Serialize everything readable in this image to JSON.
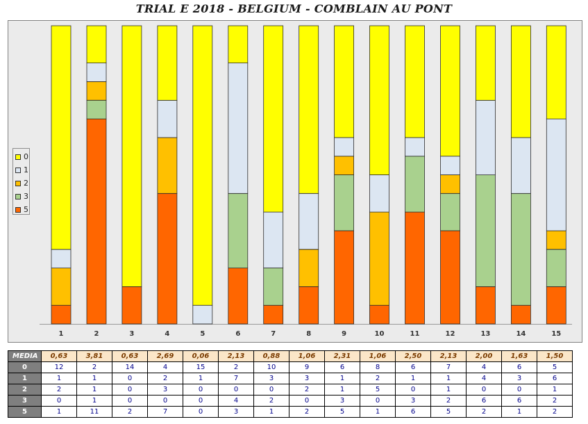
{
  "chart_data": {
    "type": "bar",
    "stacked": "percent",
    "title": "TRIAL E 2018 - BELGIUM - COMBLAIN AU PONT",
    "categories": [
      "1",
      "2",
      "3",
      "4",
      "5",
      "6",
      "7",
      "8",
      "9",
      "10",
      "11",
      "12",
      "13",
      "14",
      "15"
    ],
    "series": [
      {
        "name": "5",
        "color": "#ff6600",
        "values": [
          1,
          11,
          2,
          7,
          0,
          3,
          1,
          2,
          5,
          1,
          6,
          5,
          2,
          1,
          2
        ]
      },
      {
        "name": "3",
        "color": "#a9d18e",
        "values": [
          0,
          1,
          0,
          0,
          0,
          4,
          2,
          0,
          3,
          0,
          3,
          2,
          6,
          6,
          2
        ]
      },
      {
        "name": "2",
        "color": "#ffc000",
        "values": [
          2,
          1,
          0,
          3,
          0,
          0,
          0,
          2,
          1,
          5,
          0,
          1,
          0,
          0,
          1
        ]
      },
      {
        "name": "1",
        "color": "#dce6f2",
        "values": [
          1,
          1,
          0,
          2,
          1,
          7,
          3,
          3,
          1,
          2,
          1,
          1,
          4,
          3,
          6
        ]
      },
      {
        "name": "0",
        "color": "#ffff00",
        "values": [
          12,
          2,
          14,
          4,
          15,
          2,
          10,
          9,
          6,
          8,
          6,
          7,
          4,
          6,
          5
        ]
      }
    ],
    "legend_order": [
      "0",
      "1",
      "2",
      "3",
      "5"
    ],
    "legend_position": "left",
    "grid": false
  },
  "table": {
    "media_label": "MEDIA",
    "media": [
      "0,63",
      "3,81",
      "0,63",
      "2,69",
      "0,06",
      "2,13",
      "0,88",
      "1,06",
      "2,31",
      "1,06",
      "2,50",
      "2,13",
      "2,00",
      "1,63",
      "1,50"
    ],
    "rows": [
      {
        "label": "0",
        "values": [
          "12",
          "2",
          "14",
          "4",
          "15",
          "2",
          "10",
          "9",
          "6",
          "8",
          "6",
          "7",
          "4",
          "6",
          "5"
        ]
      },
      {
        "label": "1",
        "values": [
          "1",
          "1",
          "0",
          "2",
          "1",
          "7",
          "3",
          "3",
          "1",
          "2",
          "1",
          "1",
          "4",
          "3",
          "6"
        ]
      },
      {
        "label": "2",
        "values": [
          "2",
          "1",
          "0",
          "3",
          "0",
          "0",
          "0",
          "2",
          "1",
          "5",
          "0",
          "1",
          "0",
          "0",
          "1"
        ]
      },
      {
        "label": "3",
        "values": [
          "0",
          "1",
          "0",
          "0",
          "0",
          "4",
          "2",
          "0",
          "3",
          "0",
          "3",
          "2",
          "6",
          "6",
          "2"
        ]
      },
      {
        "label": "5",
        "values": [
          "1",
          "11",
          "2",
          "7",
          "0",
          "3",
          "1",
          "2",
          "5",
          "1",
          "6",
          "5",
          "2",
          "1",
          "2"
        ]
      }
    ]
  }
}
